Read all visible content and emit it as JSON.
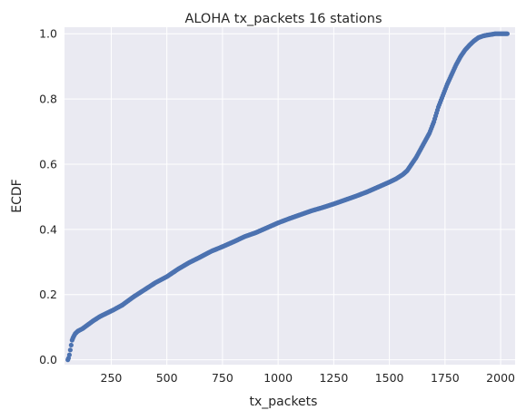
{
  "chart_data": {
    "type": "scatter",
    "title": "ALOHA tx_packets 16 stations",
    "xlabel": "tx_packets",
    "ylabel": "ECDF",
    "xlim": [
      40,
      2065
    ],
    "ylim": [
      -0.015,
      1.02
    ],
    "xticks": [
      250,
      500,
      750,
      1000,
      1250,
      1500,
      1750,
      2000
    ],
    "xtick_labels": [
      "250",
      "500",
      "750",
      "1000",
      "1250",
      "1500",
      "1750",
      "2000"
    ],
    "yticks": [
      0.0,
      0.2,
      0.4,
      0.6,
      0.8,
      1.0
    ],
    "ytick_labels": [
      "0.0",
      "0.2",
      "0.4",
      "0.6",
      "0.8",
      "1.0"
    ],
    "grid": true,
    "legend": "none",
    "background_color": "#eaeaf2",
    "grid_color": "#ffffff",
    "marker_color": "#4c72b0",
    "series": [
      {
        "x": [
          55,
          58,
          62,
          66,
          70,
          74,
          80,
          88,
          100,
          120,
          140,
          170,
          200,
          230,
          260,
          300,
          350,
          400,
          450,
          500,
          550,
          600,
          650,
          700,
          750,
          800,
          850,
          900,
          950,
          1000,
          1050,
          1100,
          1150,
          1200,
          1250,
          1300,
          1350,
          1400,
          1450,
          1500,
          1530,
          1560,
          1580,
          1600,
          1620,
          1640,
          1660,
          1680,
          1700,
          1720,
          1740,
          1760,
          1780,
          1800,
          1820,
          1840,
          1860,
          1880,
          1900,
          1920,
          1940,
          1960,
          1975,
          2000,
          2030
        ],
        "y": [
          0.0,
          0.005,
          0.015,
          0.03,
          0.045,
          0.06,
          0.07,
          0.08,
          0.088,
          0.095,
          0.105,
          0.12,
          0.133,
          0.143,
          0.153,
          0.168,
          0.193,
          0.215,
          0.237,
          0.255,
          0.278,
          0.298,
          0.315,
          0.333,
          0.347,
          0.362,
          0.378,
          0.39,
          0.405,
          0.42,
          0.433,
          0.445,
          0.457,
          0.467,
          0.478,
          0.49,
          0.502,
          0.515,
          0.53,
          0.545,
          0.555,
          0.568,
          0.58,
          0.6,
          0.62,
          0.645,
          0.67,
          0.695,
          0.73,
          0.775,
          0.81,
          0.845,
          0.875,
          0.905,
          0.93,
          0.95,
          0.965,
          0.978,
          0.988,
          0.993,
          0.996,
          0.998,
          1.0,
          1.0,
          1.0
        ]
      }
    ]
  }
}
